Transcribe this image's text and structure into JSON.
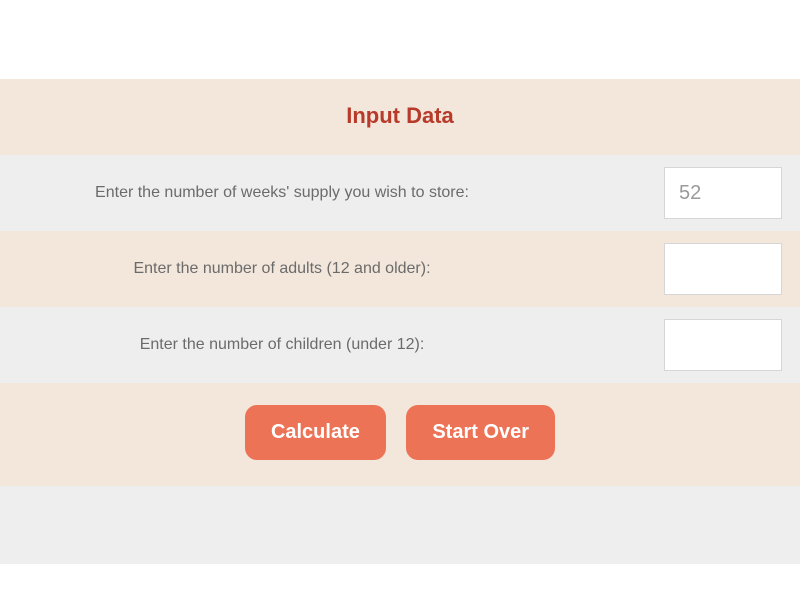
{
  "header": {
    "title": "Input Data"
  },
  "form": {
    "rows": [
      {
        "label": "Enter the number of weeks' supply you wish to store:",
        "value": "52"
      },
      {
        "label": "Enter the number of adults (12 and older):",
        "value": ""
      },
      {
        "label": "Enter the number of children (under 12):",
        "value": ""
      }
    ]
  },
  "buttons": {
    "calculate": "Calculate",
    "start_over": "Start Over"
  },
  "colors": {
    "cream": "#f3e7dc",
    "gray": "#eeeeee",
    "title": "#b73a2a",
    "label": "#6b6b6b",
    "button_bg": "#ed7356",
    "button_text": "#ffffff",
    "input_border": "#d6d6d6",
    "input_text": "#9a9a9a"
  }
}
